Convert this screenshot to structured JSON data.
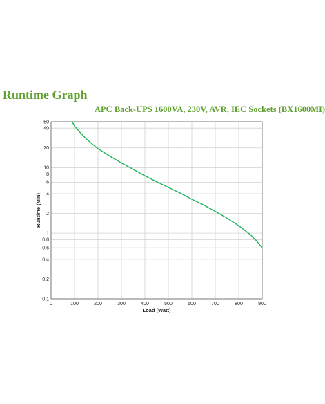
{
  "page": {
    "title": "Runtime Graph"
  },
  "chart_data": {
    "type": "line",
    "title": "APC Back-UPS 1600VA, 230V, AVR, IEC Sockets (BX1600MI)",
    "xlabel": "Load (Watt)",
    "ylabel": "Runtime (Min)",
    "xlim": [
      0,
      900
    ],
    "ylim": [
      0.1,
      50
    ],
    "y_scale": "log",
    "grid": true,
    "line_color": "#1db45a",
    "x_ticks": [
      0,
      100,
      200,
      300,
      400,
      500,
      600,
      700,
      800,
      900
    ],
    "y_ticks": [
      0.1,
      0.2,
      0.4,
      0.6,
      0.8,
      1,
      2,
      4,
      6,
      8,
      10,
      20,
      40,
      50
    ],
    "series": [
      {
        "x": [
          90,
          100,
          125,
          150,
          175,
          200,
          250,
          300,
          350,
          400,
          450,
          500,
          550,
          600,
          650,
          700,
          750,
          800,
          850,
          875,
          900
        ],
        "y": [
          50,
          43,
          34,
          27.5,
          23,
          19.5,
          15,
          11.8,
          9.4,
          7.5,
          6.1,
          5.0,
          4.1,
          3.3,
          2.7,
          2.15,
          1.7,
          1.3,
          0.95,
          0.77,
          0.6
        ]
      }
    ]
  }
}
